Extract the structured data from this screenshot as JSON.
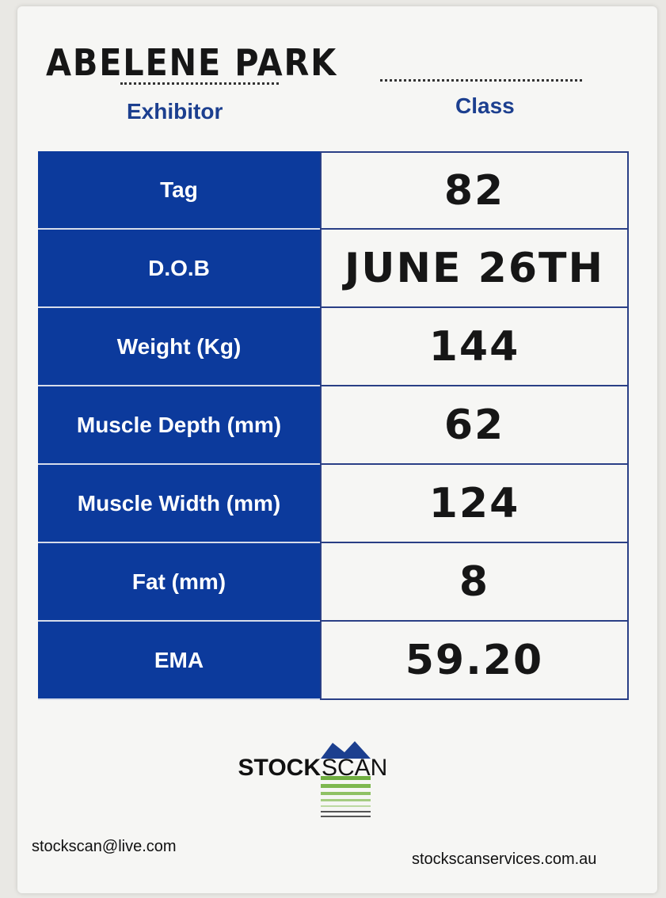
{
  "header": {
    "exhibitor_name": "ABELENE PARK",
    "exhibitor_label": "Exhibitor",
    "class_label": "Class"
  },
  "table": {
    "rows": [
      [
        "Tag",
        "82"
      ],
      [
        "D.O.B",
        "JUNE 26TH"
      ],
      [
        "Weight (Kg)",
        "144"
      ],
      [
        "Muscle Depth (mm)",
        "62"
      ],
      [
        "Muscle Width (mm)",
        "124"
      ],
      [
        "Fat (mm)",
        "8"
      ],
      [
        "EMA",
        "59.20"
      ]
    ]
  },
  "logo": {
    "part1": "STOCK",
    "part2": "SCAN"
  },
  "footer": {
    "email": "stockscan@live.com",
    "website": "stockscanservices.com.au"
  }
}
